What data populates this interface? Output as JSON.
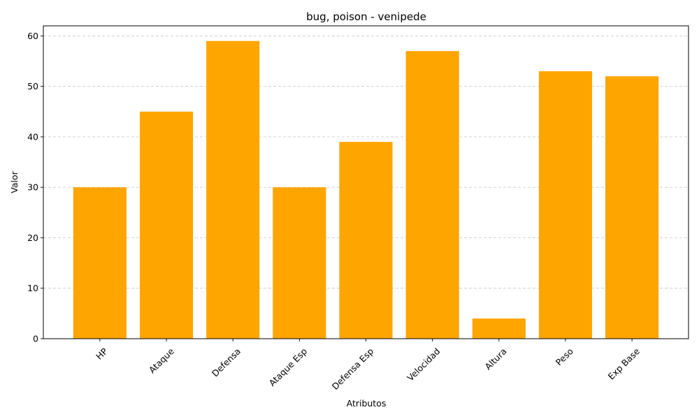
{
  "chart_data": {
    "type": "bar",
    "title": "bug, poison - venipede",
    "xlabel": "Atributos",
    "ylabel": "Valor",
    "categories": [
      "HP",
      "Ataque",
      "Defensa",
      "Ataque Esp",
      "Defensa Esp",
      "Velocidad",
      "Altura",
      "Peso",
      "Exp Base"
    ],
    "values": [
      30,
      45,
      59,
      30,
      39,
      57,
      4,
      53,
      52
    ],
    "ylim": [
      0,
      62
    ],
    "yticks": [
      0,
      10,
      20,
      30,
      40,
      50,
      60
    ],
    "grid": "y-dashed",
    "bar_color": "#ffa500",
    "x_tick_rotation_deg": 45
  }
}
